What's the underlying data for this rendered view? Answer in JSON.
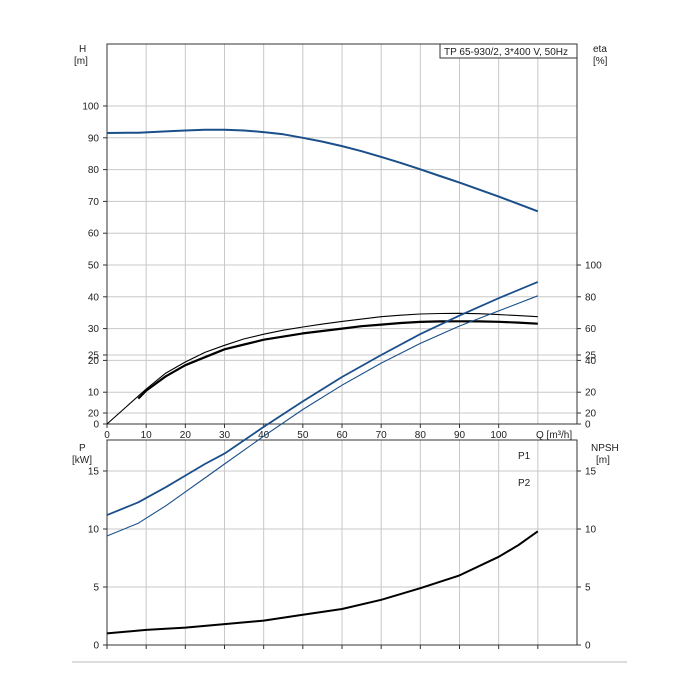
{
  "chart_data": [
    {
      "type": "line",
      "legend_box": "TP 65-930/2, 3*400 V, 50Hz",
      "left_axis": {
        "label": "H",
        "unit": "[m]",
        "range": [
          0,
          100
        ],
        "ticks": [
          "0",
          "10",
          "20",
          "30",
          "40",
          "50",
          "60",
          "70",
          "80",
          "90",
          "100"
        ]
      },
      "right_axis": {
        "label": "eta",
        "unit": "[%]",
        "range": [
          0,
          100
        ],
        "ticks": [
          "0",
          "20",
          "40",
          "60",
          "80",
          "100"
        ]
      },
      "x_axis": {
        "label": "Q [m³/h]",
        "range": [
          0,
          120
        ],
        "ticks": [
          "0",
          "10",
          "20",
          "30",
          "40",
          "50",
          "60",
          "70",
          "80",
          "90",
          "100"
        ]
      },
      "grid": true,
      "series": [
        {
          "id": "head",
          "color": "#1a4f8a",
          "axis": "left",
          "x": [
            0,
            8,
            15,
            20,
            25,
            30,
            35,
            40,
            45,
            50,
            55,
            60,
            65,
            70,
            75,
            80,
            85,
            90,
            95,
            100,
            105,
            110
          ],
          "y": [
            91.5,
            91.6,
            92.0,
            92.3,
            92.5,
            92.5,
            92.3,
            91.8,
            91.1,
            90.0,
            88.8,
            87.4,
            85.8,
            84.0,
            82.1,
            80.1,
            78.0,
            75.9,
            73.7,
            71.5,
            69.2,
            66.9
          ]
        },
        {
          "id": "eta-thick",
          "color": "#000000",
          "axis": "right",
          "x": [
            8,
            10,
            15,
            20,
            25,
            30,
            35,
            40,
            45,
            50,
            55,
            60,
            65,
            70,
            75,
            80,
            85,
            90,
            95,
            100,
            105,
            110
          ],
          "y": [
            16,
            21,
            30,
            37,
            42,
            47,
            50,
            53,
            55,
            57,
            58.5,
            60,
            61.5,
            62.5,
            63.5,
            64.2,
            64.5,
            64.6,
            64.5,
            64.3,
            63.8,
            63.1
          ]
        },
        {
          "id": "eta-thin",
          "color": "#000000",
          "axis": "right",
          "x": [
            0,
            5,
            10,
            15,
            20,
            25,
            30,
            35,
            40,
            45,
            50,
            55,
            60,
            65,
            70,
            75,
            80,
            85,
            90,
            95,
            100,
            105,
            110
          ],
          "y": [
            0,
            11,
            22,
            32,
            39,
            45,
            49.5,
            53.5,
            56.5,
            59,
            61,
            62.8,
            64.5,
            66,
            67.5,
            68.4,
            69.2,
            69.5,
            69.6,
            69.4,
            68.8,
            68.2,
            67.5
          ]
        }
      ]
    },
    {
      "type": "line",
      "left_axis": {
        "label": "P",
        "unit": "[kW]",
        "range": [
          0,
          30
        ],
        "ticks": [
          "0",
          "5",
          "10",
          "15",
          "20",
          "25"
        ]
      },
      "right_axis": {
        "label": "NPSH",
        "unit": "[m]",
        "range": [
          0,
          30
        ],
        "ticks": [
          "0",
          "5",
          "10",
          "15",
          "20",
          "25"
        ]
      },
      "x_axis": {
        "range": [
          0,
          120
        ]
      },
      "grid": true,
      "series": [
        {
          "id": "p1",
          "name": "P1",
          "color": "#1a4f8a",
          "axis": "left",
          "x": [
            0,
            8,
            15,
            20,
            25,
            30,
            40,
            50,
            60,
            70,
            80,
            90,
            100,
            110
          ],
          "y": [
            11.2,
            12.3,
            13.6,
            14.6,
            15.6,
            16.5,
            18.8,
            21.0,
            23.1,
            25.0,
            26.8,
            28.4,
            29.9,
            31.3
          ]
        },
        {
          "id": "p2",
          "name": "P2",
          "color": "#1a4f8a",
          "axis": "left",
          "x": [
            0,
            8,
            15,
            20,
            25,
            30,
            40,
            50,
            60,
            70,
            80,
            90,
            100,
            110
          ],
          "y": [
            9.4,
            10.5,
            12.0,
            13.2,
            14.4,
            15.6,
            18.0,
            20.3,
            22.4,
            24.3,
            26.0,
            27.5,
            28.8,
            30.1
          ]
        },
        {
          "id": "npsh",
          "color": "#000000",
          "axis": "right",
          "x": [
            0,
            10,
            20,
            30,
            40,
            50,
            60,
            70,
            80,
            90,
            100,
            105,
            110
          ],
          "y": [
            1.0,
            1.3,
            1.5,
            1.8,
            2.1,
            2.6,
            3.1,
            3.9,
            4.9,
            6.0,
            7.6,
            8.6,
            9.8
          ]
        }
      ]
    }
  ]
}
